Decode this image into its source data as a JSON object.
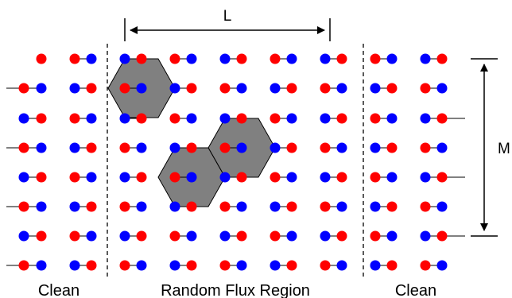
{
  "figure": {
    "dimension_width_label": "L",
    "dimension_height_label": "M",
    "region_labels": {
      "left": "Clean",
      "center": "Random Flux Region",
      "right": "Clean"
    }
  },
  "lattice": {
    "type": "honeycomb",
    "sublattice_colors": {
      "a": "#ff0000",
      "b": "#0000ff"
    },
    "flux_plaquette_color": "#808080",
    "bond_color": "#000000"
  }
}
